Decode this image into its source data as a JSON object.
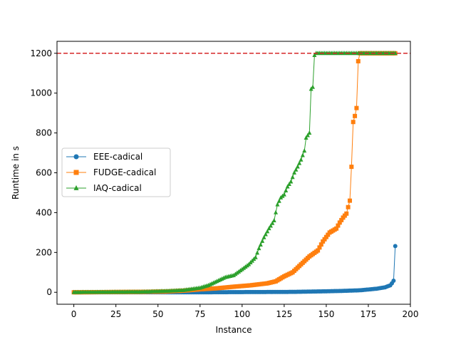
{
  "chart_data": {
    "type": "line",
    "xlabel": "Instance",
    "ylabel": "Runtime in s",
    "xlim": [
      -10,
      200
    ],
    "ylim": [
      -60,
      1260
    ],
    "xticks": [
      0,
      25,
      50,
      75,
      100,
      125,
      150,
      175,
      200
    ],
    "yticks": [
      0,
      200,
      400,
      600,
      800,
      1000,
      1200
    ],
    "timeout_line": {
      "y": 1200,
      "color": "#d62728",
      "style": "dashed"
    },
    "legend": {
      "location": "center-left"
    },
    "grid": false,
    "series": [
      {
        "name": "EEE-cadical",
        "color": "#1f77b4",
        "marker": "circle",
        "keypoints": [
          [
            0,
            0
          ],
          [
            80,
            0
          ],
          [
            100,
            1
          ],
          [
            130,
            2
          ],
          [
            150,
            5
          ],
          [
            160,
            7
          ],
          [
            170,
            10
          ],
          [
            175,
            14
          ],
          [
            180,
            18
          ],
          [
            185,
            25
          ],
          [
            188,
            35
          ],
          [
            189,
            45
          ],
          [
            190,
            58
          ],
          [
            191,
            232
          ]
        ]
      },
      {
        "name": "FUDGE-cadical",
        "color": "#ff7f0e",
        "marker": "square",
        "keypoints": [
          [
            0,
            0
          ],
          [
            40,
            2
          ],
          [
            55,
            4
          ],
          [
            65,
            8
          ],
          [
            75,
            15
          ],
          [
            85,
            20
          ],
          [
            95,
            28
          ],
          [
            105,
            35
          ],
          [
            115,
            45
          ],
          [
            120,
            55
          ],
          [
            125,
            80
          ],
          [
            130,
            100
          ],
          [
            135,
            140
          ],
          [
            140,
            180
          ],
          [
            145,
            210
          ],
          [
            148,
            255
          ],
          [
            152,
            300
          ],
          [
            156,
            320
          ],
          [
            158,
            350
          ],
          [
            160,
            375
          ],
          [
            162,
            395
          ],
          [
            164,
            460
          ],
          [
            165,
            630
          ],
          [
            166,
            855
          ],
          [
            167,
            885
          ],
          [
            168,
            925
          ],
          [
            169,
            1160
          ],
          [
            170,
            1200
          ],
          [
            191,
            1200
          ]
        ]
      },
      {
        "name": "IAQ-cadical",
        "color": "#2ca02c",
        "marker": "triangle",
        "keypoints": [
          [
            0,
            0
          ],
          [
            40,
            2
          ],
          [
            55,
            6
          ],
          [
            65,
            10
          ],
          [
            75,
            22
          ],
          [
            80,
            35
          ],
          [
            85,
            55
          ],
          [
            90,
            75
          ],
          [
            95,
            85
          ],
          [
            100,
            115
          ],
          [
            104,
            140
          ],
          [
            108,
            175
          ],
          [
            110,
            220
          ],
          [
            113,
            275
          ],
          [
            116,
            320
          ],
          [
            119,
            360
          ],
          [
            121,
            440
          ],
          [
            123,
            475
          ],
          [
            125,
            490
          ],
          [
            127,
            530
          ],
          [
            129,
            555
          ],
          [
            131,
            600
          ],
          [
            133,
            630
          ],
          [
            135,
            665
          ],
          [
            137,
            710
          ],
          [
            138,
            775
          ],
          [
            140,
            800
          ],
          [
            141,
            1020
          ],
          [
            142,
            1030
          ],
          [
            143,
            1190
          ],
          [
            144,
            1200
          ],
          [
            191,
            1200
          ]
        ]
      }
    ]
  }
}
